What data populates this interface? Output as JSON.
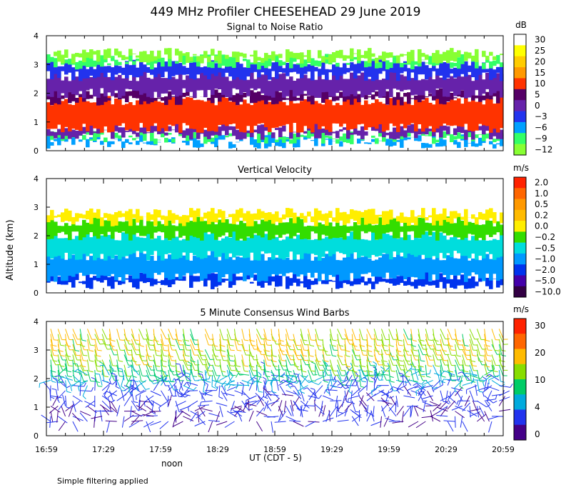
{
  "figure": {
    "title": "449 MHz Profiler CHEESEHEAD 29 June 2019",
    "ylabel": "Altitude (km)",
    "xlabel": "UT  (CDT - 5)",
    "noon_label": "noon",
    "footnote": "Simple filtering applied"
  },
  "chart_data": [
    {
      "type": "heatmap",
      "title": "Signal to Noise Ratio",
      "units": "dB",
      "x_ticks": [
        "16:59",
        "17:29",
        "17:59",
        "18:29",
        "18:59",
        "19:29",
        "19:59",
        "20:29",
        "20:59"
      ],
      "ylim": [
        0,
        4
      ],
      "y_ticks": [
        0,
        1,
        2,
        3,
        4
      ],
      "colorbar": {
        "labels": [
          "30",
          "25",
          "20",
          "15",
          "10",
          "5",
          "0",
          "−3",
          "−6",
          "−9",
          "−12"
        ],
        "colors": [
          "#ffffff",
          "#ffff00",
          "#ffcc00",
          "#ff9900",
          "#ff3300",
          "#550066",
          "#6622aa",
          "#2233ee",
          "#00a0ff",
          "#33ff66",
          "#88ff33"
        ]
      },
      "layers_km": [
        {
          "from": 0.25,
          "to": 0.4,
          "level": "−6"
        },
        {
          "from": 0.4,
          "to": 0.55,
          "level": "−9"
        },
        {
          "from": 0.55,
          "to": 0.8,
          "level": "0"
        },
        {
          "from": 0.8,
          "to": 1.75,
          "level": "10"
        },
        {
          "from": 1.75,
          "to": 2.0,
          "level": "5"
        },
        {
          "from": 2.0,
          "to": 2.6,
          "level": "0"
        },
        {
          "from": 2.6,
          "to": 3.0,
          "level": "−3"
        },
        {
          "from": 3.0,
          "to": 3.2,
          "level": "−9"
        },
        {
          "from": 3.2,
          "to": 3.4,
          "level": "−12"
        }
      ]
    },
    {
      "type": "heatmap",
      "title": "Vertical Velocity",
      "units": "m/s",
      "x_ticks": [
        "16:59",
        "17:29",
        "17:59",
        "18:29",
        "18:59",
        "19:29",
        "19:59",
        "20:29",
        "20:59"
      ],
      "ylim": [
        0,
        4
      ],
      "y_ticks": [
        0,
        1,
        2,
        3,
        4
      ],
      "colorbar": {
        "labels": [
          "2.0",
          "1.0",
          "0.5",
          "0.2",
          "0.0",
          "−0.2",
          "−0.5",
          "−1.0",
          "−2.0",
          "−5.0",
          "−10.0"
        ],
        "colors": [
          "#ff2200",
          "#ff6600",
          "#ff9900",
          "#ffbb00",
          "#ffee00",
          "#33dd00",
          "#00dddd",
          "#0099ff",
          "#0033ee",
          "#4400aa",
          "#330044"
        ]
      },
      "layers_km": [
        {
          "from": 0.3,
          "to": 0.55,
          "level": "−2.0"
        },
        {
          "from": 0.55,
          "to": 1.3,
          "level": "−1.0"
        },
        {
          "from": 1.3,
          "to": 2.0,
          "level": "−0.5"
        },
        {
          "from": 2.0,
          "to": 2.5,
          "level": "−0.2"
        },
        {
          "from": 2.5,
          "to": 2.8,
          "level": "0.0"
        }
      ]
    },
    {
      "type": "wind-barbs",
      "title": "5 Minute Consensus Wind Barbs",
      "units": "m/s",
      "x_ticks": [
        "16:59",
        "17:29",
        "17:59",
        "18:29",
        "18:59",
        "19:29",
        "19:59",
        "20:29",
        "20:59"
      ],
      "ylim": [
        0,
        4
      ],
      "y_ticks": [
        0,
        1,
        2,
        3,
        4
      ],
      "colorbar": {
        "labels": [
          "30",
          "20",
          "10",
          "4",
          "0"
        ],
        "colors": [
          "#ff2200",
          "#ff6600",
          "#ffbb00",
          "#88dd00",
          "#00cc66",
          "#00aadd",
          "#2233ee",
          "#440088"
        ]
      },
      "speed_profile_ms": [
        {
          "alt_km": 0.5,
          "speed": 3
        },
        {
          "alt_km": 1.0,
          "speed": 3
        },
        {
          "alt_km": 1.5,
          "speed": 4
        },
        {
          "alt_km": 2.0,
          "speed": 7
        },
        {
          "alt_km": 2.5,
          "speed": 12
        },
        {
          "alt_km": 3.0,
          "speed": 17
        },
        {
          "alt_km": 3.5,
          "speed": 18
        }
      ]
    }
  ]
}
